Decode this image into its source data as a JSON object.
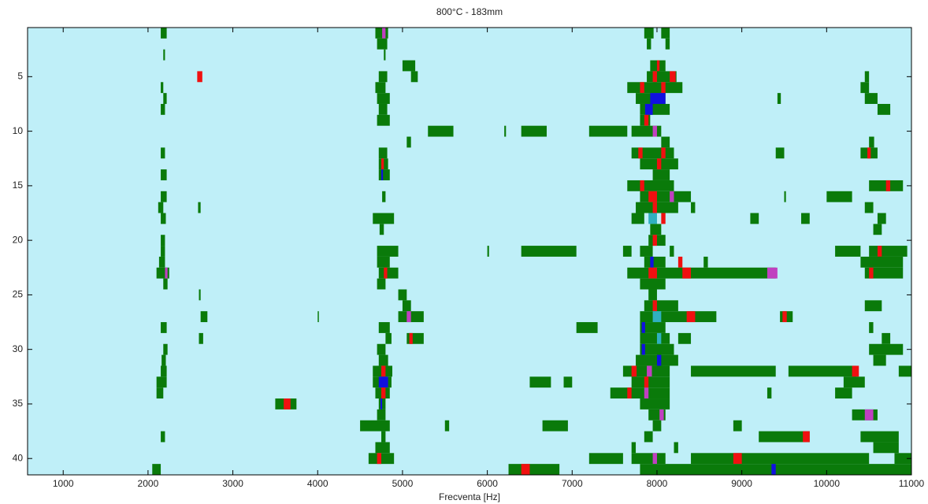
{
  "chart_data": {
    "type": "raster",
    "title": "800°C - 183mm",
    "xlabel": "Frecventa [Hz]",
    "xlim": [
      580,
      11000
    ],
    "xticks": [
      1000,
      2000,
      3000,
      4000,
      5000,
      6000,
      7000,
      8000,
      9000,
      10000,
      11000
    ],
    "ylim": [
      0.5,
      41.5
    ],
    "yticks": [
      5,
      10,
      15,
      20,
      25,
      30,
      35,
      40
    ],
    "y_reversed": true,
    "background": "#bfeff8",
    "colors": [
      "#0a7a0a",
      "#f01010",
      "#1010e0",
      "#c040c0",
      "#30b0c0"
    ],
    "cells": [
      [
        1,
        2150,
        2220,
        0
      ],
      [
        1,
        4680,
        4830,
        0
      ],
      [
        1,
        4760,
        4800,
        3
      ],
      [
        1,
        7850,
        7960,
        0
      ],
      [
        1,
        8050,
        8150,
        0
      ],
      [
        2,
        4700,
        4820,
        0
      ],
      [
        2,
        7880,
        7930,
        0
      ],
      [
        2,
        8100,
        8150,
        0
      ],
      [
        3,
        2180,
        2200,
        0
      ],
      [
        3,
        4780,
        4800,
        0
      ],
      [
        4,
        5000,
        5150,
        0
      ],
      [
        4,
        7920,
        8100,
        0
      ],
      [
        4,
        8000,
        8030,
        1
      ],
      [
        5,
        2580,
        2640,
        1
      ],
      [
        5,
        4720,
        4820,
        0
      ],
      [
        5,
        5100,
        5180,
        0
      ],
      [
        5,
        7880,
        8230,
        0
      ],
      [
        5,
        7950,
        8000,
        1
      ],
      [
        5,
        8150,
        8220,
        1
      ],
      [
        5,
        10450,
        10500,
        0
      ],
      [
        6,
        2150,
        2180,
        0
      ],
      [
        6,
        4680,
        4800,
        0
      ],
      [
        6,
        7650,
        8300,
        0
      ],
      [
        6,
        7800,
        7850,
        1
      ],
      [
        6,
        8050,
        8100,
        1
      ],
      [
        6,
        10400,
        10500,
        0
      ],
      [
        7,
        2180,
        2220,
        0
      ],
      [
        7,
        4700,
        4850,
        0
      ],
      [
        7,
        7750,
        8100,
        0
      ],
      [
        7,
        7920,
        8100,
        2
      ],
      [
        7,
        9420,
        9460,
        0
      ],
      [
        7,
        10450,
        10600,
        0
      ],
      [
        8,
        2150,
        2200,
        0
      ],
      [
        8,
        4720,
        4820,
        0
      ],
      [
        8,
        7800,
        8150,
        0
      ],
      [
        8,
        7860,
        7950,
        2
      ],
      [
        8,
        10600,
        10750,
        0
      ],
      [
        9,
        4700,
        4850,
        0
      ],
      [
        9,
        7800,
        7920,
        0
      ],
      [
        9,
        7850,
        7900,
        1
      ],
      [
        10,
        5300,
        5600,
        0
      ],
      [
        10,
        6200,
        6220,
        0
      ],
      [
        10,
        6400,
        6700,
        0
      ],
      [
        10,
        7200,
        7650,
        0
      ],
      [
        10,
        7700,
        8050,
        0
      ],
      [
        10,
        7950,
        8000,
        3
      ],
      [
        11,
        5050,
        5100,
        0
      ],
      [
        11,
        8050,
        8150,
        0
      ],
      [
        11,
        10500,
        10560,
        0
      ],
      [
        12,
        2150,
        2200,
        0
      ],
      [
        12,
        4720,
        4820,
        0
      ],
      [
        12,
        7700,
        8200,
        0
      ],
      [
        12,
        7780,
        7830,
        1
      ],
      [
        12,
        8050,
        8100,
        1
      ],
      [
        12,
        9400,
        9500,
        0
      ],
      [
        12,
        10400,
        10600,
        0
      ],
      [
        12,
        10480,
        10520,
        1
      ],
      [
        13,
        4720,
        4830,
        0
      ],
      [
        13,
        4750,
        4780,
        1
      ],
      [
        13,
        7800,
        8250,
        0
      ],
      [
        13,
        8000,
        8050,
        1
      ],
      [
        14,
        2150,
        2220,
        0
      ],
      [
        14,
        4720,
        4850,
        0
      ],
      [
        14,
        4750,
        4770,
        2
      ],
      [
        14,
        7950,
        8150,
        0
      ],
      [
        15,
        7650,
        8200,
        0
      ],
      [
        15,
        7800,
        7850,
        1
      ],
      [
        15,
        10500,
        10900,
        0
      ],
      [
        15,
        10700,
        10750,
        1
      ],
      [
        16,
        2150,
        2220,
        0
      ],
      [
        16,
        4760,
        4800,
        0
      ],
      [
        16,
        7800,
        8400,
        0
      ],
      [
        16,
        7900,
        8000,
        1
      ],
      [
        16,
        8150,
        8200,
        3
      ],
      [
        16,
        9500,
        9520,
        0
      ],
      [
        16,
        10000,
        10300,
        0
      ],
      [
        17,
        2120,
        2180,
        0
      ],
      [
        17,
        2590,
        2620,
        0
      ],
      [
        17,
        7750,
        8250,
        0
      ],
      [
        17,
        7950,
        8000,
        1
      ],
      [
        17,
        8400,
        8450,
        0
      ],
      [
        17,
        10450,
        10550,
        0
      ],
      [
        18,
        2150,
        2210,
        0
      ],
      [
        18,
        4650,
        4900,
        0
      ],
      [
        18,
        7700,
        7850,
        0
      ],
      [
        18,
        7900,
        8000,
        4
      ],
      [
        18,
        8050,
        8100,
        1
      ],
      [
        18,
        9100,
        9200,
        0
      ],
      [
        18,
        9700,
        9800,
        0
      ],
      [
        18,
        10600,
        10700,
        0
      ],
      [
        19,
        4730,
        4780,
        0
      ],
      [
        19,
        7920,
        8050,
        0
      ],
      [
        19,
        10550,
        10650,
        0
      ],
      [
        20,
        2150,
        2200,
        0
      ],
      [
        20,
        7900,
        8100,
        0
      ],
      [
        20,
        7950,
        8000,
        1
      ],
      [
        21,
        2150,
        2200,
        0
      ],
      [
        21,
        4700,
        4950,
        0
      ],
      [
        21,
        6000,
        6020,
        0
      ],
      [
        21,
        6400,
        7050,
        0
      ],
      [
        21,
        7600,
        7700,
        0
      ],
      [
        21,
        7800,
        7950,
        0
      ],
      [
        21,
        8150,
        8200,
        0
      ],
      [
        21,
        10100,
        10400,
        0
      ],
      [
        21,
        10500,
        10950,
        0
      ],
      [
        21,
        10600,
        10650,
        1
      ],
      [
        22,
        2130,
        2200,
        0
      ],
      [
        22,
        4700,
        4850,
        0
      ],
      [
        22,
        7850,
        8100,
        0
      ],
      [
        22,
        7920,
        7960,
        2
      ],
      [
        22,
        8250,
        8300,
        1
      ],
      [
        22,
        8550,
        8600,
        0
      ],
      [
        22,
        10400,
        10900,
        0
      ],
      [
        23,
        2100,
        2250,
        0
      ],
      [
        23,
        2200,
        2230,
        3
      ],
      [
        23,
        4720,
        4950,
        0
      ],
      [
        23,
        4780,
        4820,
        1
      ],
      [
        23,
        7650,
        9400,
        0
      ],
      [
        23,
        7900,
        8000,
        1
      ],
      [
        23,
        8300,
        8400,
        1
      ],
      [
        23,
        9300,
        9420,
        3
      ],
      [
        23,
        10450,
        10900,
        0
      ],
      [
        23,
        10500,
        10550,
        1
      ],
      [
        24,
        2180,
        2230,
        0
      ],
      [
        24,
        4700,
        4800,
        0
      ],
      [
        24,
        7800,
        8100,
        0
      ],
      [
        25,
        2600,
        2620,
        0
      ],
      [
        25,
        4950,
        5050,
        0
      ],
      [
        25,
        7900,
        8000,
        0
      ],
      [
        26,
        5000,
        5100,
        0
      ],
      [
        26,
        7850,
        8250,
        0
      ],
      [
        26,
        7950,
        8000,
        1
      ],
      [
        26,
        10450,
        10650,
        0
      ],
      [
        27,
        2620,
        2700,
        0
      ],
      [
        27,
        4000,
        4010,
        0
      ],
      [
        27,
        4950,
        5250,
        0
      ],
      [
        27,
        5050,
        5100,
        3
      ],
      [
        27,
        7800,
        8700,
        0
      ],
      [
        27,
        7950,
        8050,
        4
      ],
      [
        27,
        8350,
        8450,
        1
      ],
      [
        27,
        9450,
        9600,
        0
      ],
      [
        27,
        9480,
        9530,
        1
      ],
      [
        28,
        2150,
        2220,
        0
      ],
      [
        28,
        4720,
        4850,
        0
      ],
      [
        28,
        7050,
        7300,
        0
      ],
      [
        28,
        7800,
        8100,
        0
      ],
      [
        28,
        7820,
        7860,
        2
      ],
      [
        28,
        10500,
        10550,
        0
      ],
      [
        29,
        2600,
        2650,
        0
      ],
      [
        29,
        4800,
        4870,
        0
      ],
      [
        29,
        5050,
        5250,
        0
      ],
      [
        29,
        5080,
        5120,
        1
      ],
      [
        29,
        7800,
        8150,
        0
      ],
      [
        29,
        8000,
        8050,
        4
      ],
      [
        29,
        8250,
        8400,
        0
      ],
      [
        29,
        10650,
        10750,
        0
      ],
      [
        30,
        2180,
        2230,
        0
      ],
      [
        30,
        4700,
        4800,
        0
      ],
      [
        30,
        7800,
        8200,
        0
      ],
      [
        30,
        7820,
        7860,
        2
      ],
      [
        30,
        10500,
        10900,
        0
      ],
      [
        31,
        2160,
        2210,
        0
      ],
      [
        31,
        4720,
        4830,
        0
      ],
      [
        31,
        7750,
        8250,
        0
      ],
      [
        31,
        8000,
        8050,
        2
      ],
      [
        31,
        10550,
        10700,
        0
      ],
      [
        32,
        2150,
        2220,
        0
      ],
      [
        32,
        4650,
        4880,
        0
      ],
      [
        32,
        4750,
        4800,
        1
      ],
      [
        32,
        7600,
        8150,
        0
      ],
      [
        32,
        7700,
        7760,
        1
      ],
      [
        32,
        7880,
        7940,
        3
      ],
      [
        32,
        8400,
        9400,
        0
      ],
      [
        32,
        9550,
        10350,
        0
      ],
      [
        32,
        10300,
        10380,
        1
      ],
      [
        32,
        10850,
        11000,
        0
      ],
      [
        33,
        2100,
        2220,
        0
      ],
      [
        33,
        4650,
        4870,
        0
      ],
      [
        33,
        4720,
        4830,
        2
      ],
      [
        33,
        6500,
        6750,
        0
      ],
      [
        33,
        6900,
        7000,
        0
      ],
      [
        33,
        7700,
        8150,
        0
      ],
      [
        33,
        7850,
        7900,
        1
      ],
      [
        33,
        10200,
        10450,
        0
      ],
      [
        34,
        2100,
        2180,
        0
      ],
      [
        34,
        4680,
        4850,
        0
      ],
      [
        34,
        4750,
        4800,
        1
      ],
      [
        34,
        7450,
        8150,
        0
      ],
      [
        34,
        7650,
        7700,
        1
      ],
      [
        34,
        7850,
        7900,
        3
      ],
      [
        34,
        9300,
        9350,
        0
      ],
      [
        34,
        10100,
        10300,
        0
      ],
      [
        35,
        3500,
        3750,
        0
      ],
      [
        35,
        3600,
        3680,
        1
      ],
      [
        35,
        4720,
        4800,
        0
      ],
      [
        35,
        4740,
        4760,
        2
      ],
      [
        35,
        7800,
        8150,
        0
      ],
      [
        36,
        4700,
        4800,
        0
      ],
      [
        36,
        7900,
        8100,
        0
      ],
      [
        36,
        8030,
        8080,
        3
      ],
      [
        36,
        10300,
        10600,
        0
      ],
      [
        36,
        10450,
        10550,
        3
      ],
      [
        37,
        4500,
        4850,
        0
      ],
      [
        37,
        5500,
        5550,
        0
      ],
      [
        37,
        6650,
        6950,
        0
      ],
      [
        37,
        7950,
        8050,
        0
      ],
      [
        37,
        8900,
        9000,
        0
      ],
      [
        38,
        2150,
        2200,
        0
      ],
      [
        38,
        4750,
        4800,
        0
      ],
      [
        38,
        7850,
        7950,
        0
      ],
      [
        38,
        9200,
        9800,
        0
      ],
      [
        38,
        9720,
        9800,
        1
      ],
      [
        38,
        10400,
        10850,
        0
      ],
      [
        39,
        4680,
        4850,
        0
      ],
      [
        39,
        7700,
        7750,
        0
      ],
      [
        39,
        8200,
        8250,
        0
      ],
      [
        39,
        10550,
        10850,
        0
      ],
      [
        40,
        4600,
        4900,
        0
      ],
      [
        40,
        4700,
        4750,
        1
      ],
      [
        40,
        7200,
        7600,
        0
      ],
      [
        40,
        7700,
        8100,
        0
      ],
      [
        40,
        7950,
        8000,
        3
      ],
      [
        40,
        8400,
        10500,
        0
      ],
      [
        40,
        8900,
        9000,
        1
      ],
      [
        40,
        10800,
        11000,
        0
      ],
      [
        41,
        2050,
        2150,
        0
      ],
      [
        41,
        6250,
        6850,
        0
      ],
      [
        41,
        6400,
        6500,
        1
      ],
      [
        41,
        7800,
        11000,
        0
      ],
      [
        41,
        9350,
        9400,
        2
      ]
    ]
  }
}
